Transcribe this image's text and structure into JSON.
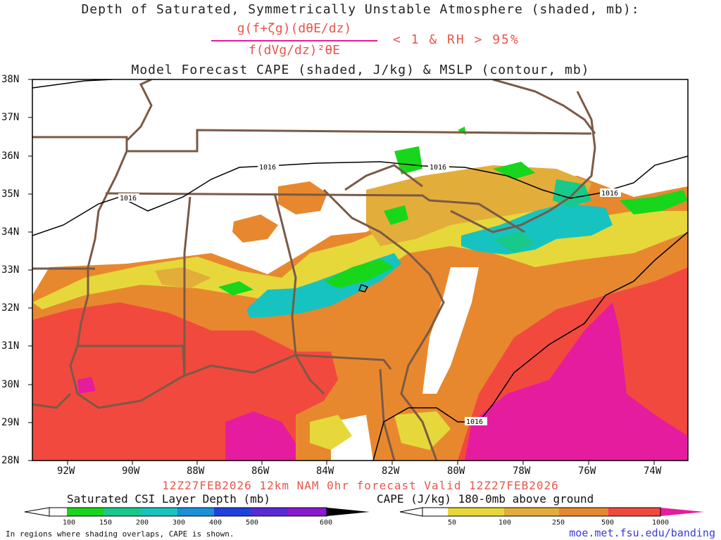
{
  "header": {
    "line1": "Depth of Saturated, Symmetrically Unstable Atmosphere (shaded, mb):",
    "numerator": "g(f+ζg)(dθE/dz)",
    "denominator": "f(dVg/dz)²θE",
    "condition": "< 1 & RH > 95%",
    "line3": "Model Forecast CAPE (shaded, J/kg) & MSLP (contour, mb)"
  },
  "map": {
    "lat_labels": [
      "38N",
      "37N",
      "36N",
      "35N",
      "34N",
      "33N",
      "32N",
      "31N",
      "30N",
      "29N",
      "28N"
    ],
    "lon_labels": [
      "92W",
      "90W",
      "88W",
      "86W",
      "84W",
      "82W",
      "80W",
      "78W",
      "76W",
      "74W"
    ],
    "isobar_labels": [
      "1016",
      "1016",
      "1016",
      "1016",
      "1016"
    ]
  },
  "footer": {
    "valid_line": "12Z27FEB2026 12km NAM 0hr forecast Valid 12Z27FEB2026",
    "csi_title": "Saturated CSI Layer Depth (mb)",
    "cape_title": "CAPE (J/kg) 180-0mb above ground",
    "csi_ticks": [
      "100",
      "150",
      "200",
      "300",
      "400",
      "500",
      "600"
    ],
    "cape_ticks": [
      "50",
      "100",
      "250",
      "500",
      "1000"
    ],
    "note": "In regions where shading overlaps, CAPE is shown.",
    "credit": "moe.met.fsu.edu/banding"
  },
  "colors": {
    "cape": [
      "#e6d83a",
      "#e3ad3a",
      "#e8882e",
      "#f2493f",
      "#e61c9e"
    ],
    "csi": [
      "#18d61c",
      "#17c98a",
      "#16c3c0",
      "#1a90d8",
      "#2040e0",
      "#5a2ad8",
      "#8a1ad0"
    ],
    "state_lines": "#7a5a46",
    "credit": "#3a3ae0",
    "title_red": "#e8564b"
  }
}
